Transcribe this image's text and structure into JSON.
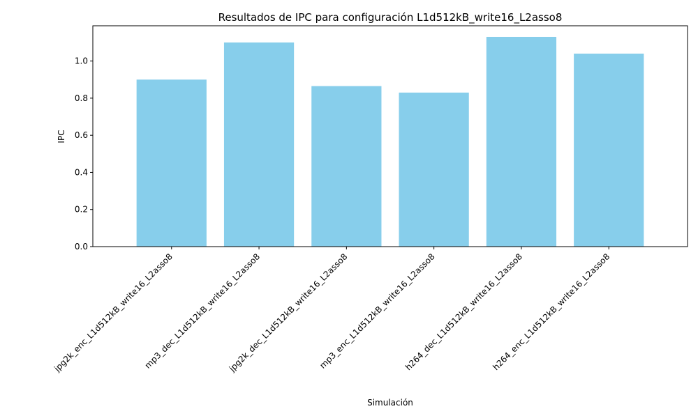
{
  "chart_data": {
    "type": "bar",
    "title": "Resultados de IPC para configuración L1d512kB_write16_L2asso8",
    "xlabel": "Simulación",
    "ylabel": "IPC",
    "categories": [
      "jpg2k_enc_L1d512kB_write16_L2asso8",
      "mp3_dec_L1d512kB_write16_L2asso8",
      "jpg2k_dec_L1d512kB_write16_L2asso8",
      "mp3_enc_L1d512kB_write16_L2asso8",
      "h264_dec_L1d512kB_write16_L2asso8",
      "h264_enc_L1d512kB_write16_L2asso8"
    ],
    "values": [
      0.9,
      1.1,
      0.865,
      0.83,
      1.13,
      1.04
    ],
    "ylim": [
      0,
      1.19
    ],
    "yticks": [
      "0.0",
      "0.2",
      "0.4",
      "0.6",
      "0.8",
      "1.0"
    ],
    "bar_color": "#87CEEB",
    "grid": false,
    "legend": "none"
  }
}
